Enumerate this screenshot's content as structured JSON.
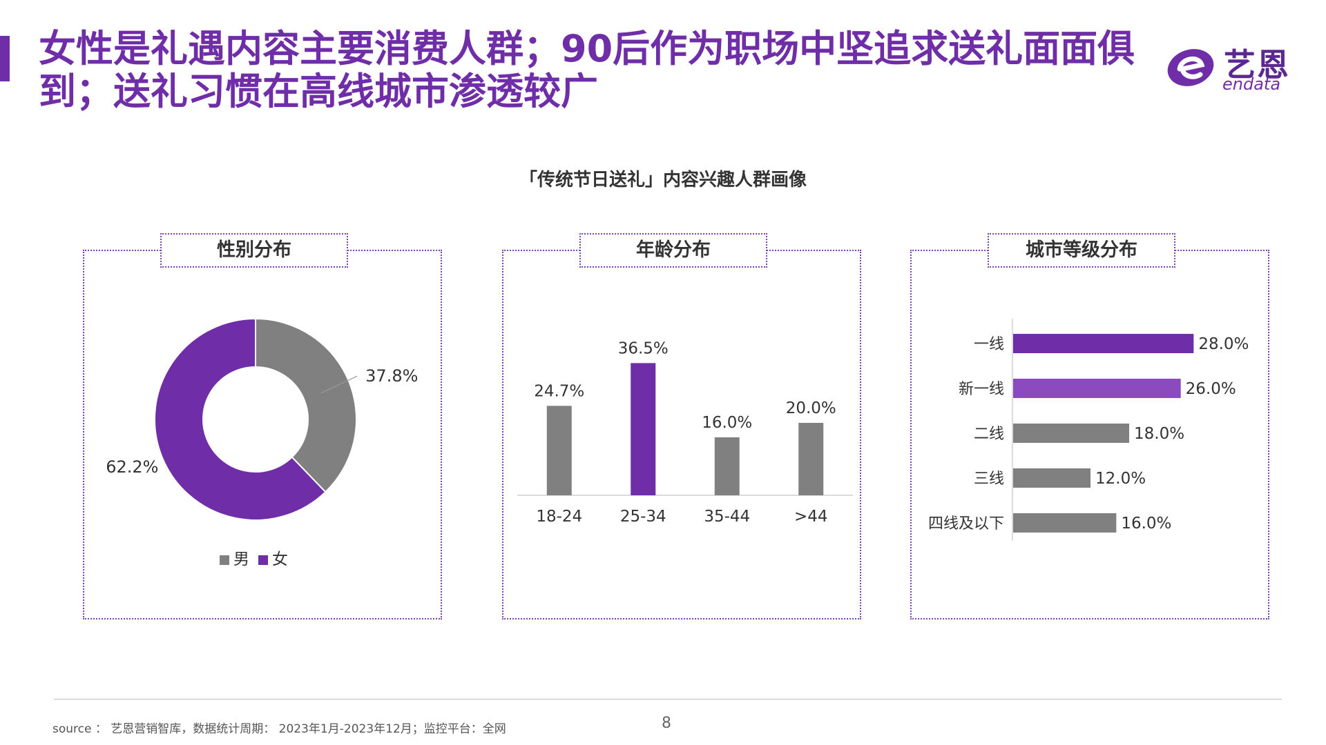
{
  "page": {
    "title": "女性是礼遇内容主要消费人群；90后作为职场中坚追求送礼面面俱到；送礼习惯在高线城市渗透较广",
    "main_title": "「传统节日送礼」内容兴趣人群画像",
    "logo_cn": "艺恩",
    "logo_en": "endata",
    "source": "source ： 艺恩营销智库，数据统计周期： 2023年1月-2023年12月；监控平台：全网",
    "page_number": "8"
  },
  "colors": {
    "purple": "#6f2da8",
    "purple_light": "#8b4bbe",
    "gray": "#808080"
  },
  "chart_data": [
    {
      "type": "pie",
      "title": "性别分布",
      "categories": [
        "男",
        "女"
      ],
      "values": [
        37.8,
        62.2
      ],
      "labels": [
        "37.8%",
        "62.2%"
      ],
      "colors": [
        "#808080",
        "#6f2da8"
      ],
      "legend": "bottom"
    },
    {
      "type": "bar",
      "title": "年龄分布",
      "categories": [
        "18-24",
        "25-34",
        "35-44",
        ">44"
      ],
      "values": [
        24.7,
        36.5,
        16.0,
        20.0
      ],
      "labels": [
        "24.7%",
        "36.5%",
        "16.0%",
        "20.0%"
      ],
      "colors": [
        "#808080",
        "#6f2da8",
        "#808080",
        "#808080"
      ],
      "ylim": [
        0,
        40
      ]
    },
    {
      "type": "bar",
      "orientation": "horizontal",
      "title": "城市等级分布",
      "categories": [
        "一线",
        "新一线",
        "二线",
        "三线",
        "四线及以下"
      ],
      "values": [
        28.0,
        26.0,
        18.0,
        12.0,
        16.0
      ],
      "labels": [
        "28.0%",
        "26.0%",
        "18.0%",
        "12.0%",
        "16.0%"
      ],
      "colors": [
        "#6f2da8",
        "#8b4bbe",
        "#808080",
        "#808080",
        "#808080"
      ],
      "xlim": [
        0,
        30
      ]
    }
  ]
}
